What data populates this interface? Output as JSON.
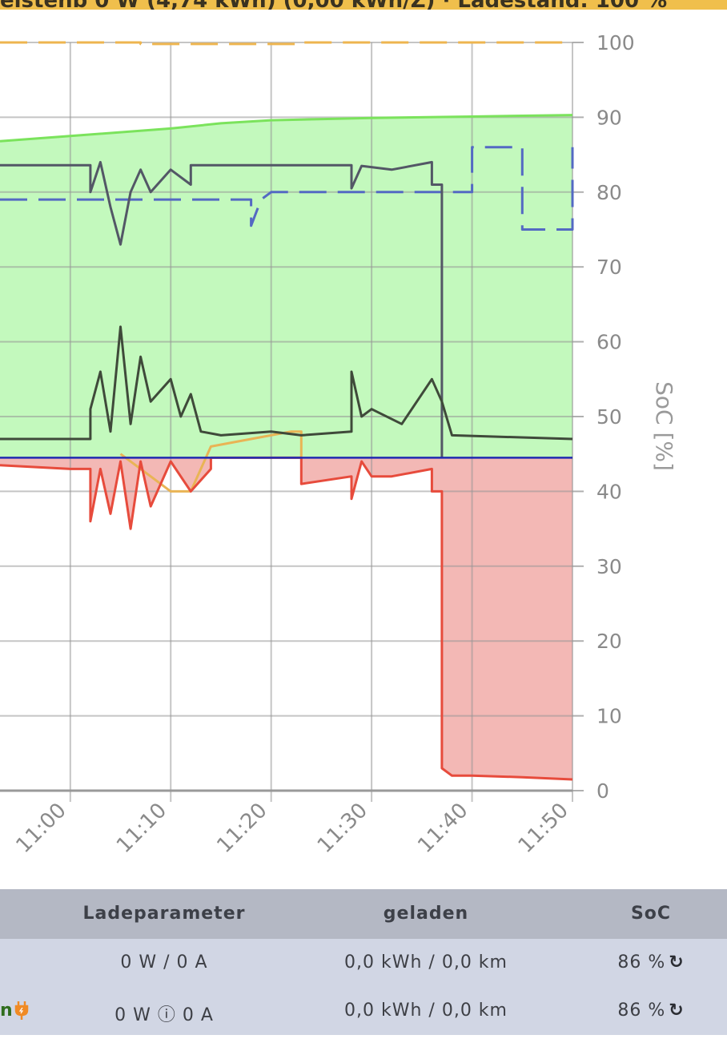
{
  "header": {
    "text": "eistenb 0 W (4,74 kWh) (0,00 kWh/Z) · Ladestand: 100 %",
    "bg_color": "#f0bf4c"
  },
  "chart_data": {
    "type": "line",
    "x_ticks": [
      "11:00",
      "11:10",
      "11:20",
      "11:30",
      "11:40",
      "11:50"
    ],
    "xlim": [
      "10:53",
      "11:50"
    ],
    "y_right_label": "SoC [%]",
    "y_right_ticks": [
      0,
      10,
      20,
      30,
      40,
      50,
      60,
      70,
      80,
      90,
      100
    ],
    "ylim": [
      0,
      100
    ],
    "baseline_level": 44.5,
    "grid": true,
    "series": [
      {
        "key": "soc_home",
        "color": "#7be35c",
        "fill": "#c3f9bd",
        "style": "solid",
        "points": [
          [
            "10:53",
            86.8
          ],
          [
            "11:00",
            87.5
          ],
          [
            "11:10",
            88.5
          ],
          [
            "11:15",
            89.2
          ],
          [
            "11:20",
            89.6
          ],
          [
            "11:30",
            89.9
          ],
          [
            "11:40",
            90.1
          ],
          [
            "11:50",
            90.3
          ]
        ]
      },
      {
        "key": "battery_limit",
        "color": "#eeb54f",
        "style": "dashed",
        "points": [
          [
            "10:53",
            100
          ],
          [
            "11:07",
            100
          ],
          [
            "11:07",
            99.8
          ],
          [
            "11:23",
            99.8
          ],
          [
            "11:23",
            100
          ],
          [
            "11:50",
            100
          ]
        ]
      },
      {
        "key": "vehicle_soc_1",
        "color": "#535766",
        "style": "solid",
        "points": [
          [
            "10:53",
            83.6
          ],
          [
            "11:02",
            83.6
          ],
          [
            "11:02",
            80
          ],
          [
            "11:03",
            84
          ],
          [
            "11:04",
            78
          ],
          [
            "11:05",
            73
          ],
          [
            "11:06",
            80
          ],
          [
            "11:07",
            83
          ],
          [
            "11:08",
            80
          ],
          [
            "11:10",
            83
          ],
          [
            "11:12",
            81
          ],
          [
            "11:12",
            83.6
          ],
          [
            "11:28",
            83.6
          ],
          [
            "11:28",
            80.5
          ],
          [
            "11:29",
            83.5
          ],
          [
            "11:32",
            83
          ],
          [
            "11:36",
            84
          ],
          [
            "11:36",
            81
          ],
          [
            "11:37",
            81
          ],
          [
            "11:37",
            44.5
          ]
        ]
      },
      {
        "key": "vehicle_soc_2",
        "color": "#5469c3",
        "style": "dashed",
        "points": [
          [
            "10:53",
            79
          ],
          [
            "11:18",
            79
          ],
          [
            "11:18",
            75.5
          ],
          [
            "11:19",
            79
          ],
          [
            "11:20",
            80
          ],
          [
            "11:40",
            80
          ],
          [
            "11:40",
            86
          ],
          [
            "11:45",
            86
          ],
          [
            "11:45",
            75
          ],
          [
            "11:47",
            75
          ],
          [
            "11:50",
            75
          ],
          [
            "11:50",
            86
          ]
        ]
      },
      {
        "key": "house_consumption",
        "color": "#3f4a3a",
        "style": "solid",
        "points": [
          [
            "10:53",
            47
          ],
          [
            "11:02",
            47
          ],
          [
            "11:02",
            51
          ],
          [
            "11:03",
            56
          ],
          [
            "11:04",
            48
          ],
          [
            "11:05",
            62
          ],
          [
            "11:06",
            49
          ],
          [
            "11:07",
            58
          ],
          [
            "11:08",
            52
          ],
          [
            "11:10",
            55
          ],
          [
            "11:11",
            50
          ],
          [
            "11:12",
            53
          ],
          [
            "11:13",
            48
          ],
          [
            "11:15",
            47.5
          ],
          [
            "11:20",
            48
          ],
          [
            "11:23",
            47.5
          ],
          [
            "11:28",
            48
          ],
          [
            "11:28",
            56
          ],
          [
            "11:29",
            50
          ],
          [
            "11:30",
            51
          ],
          [
            "11:33",
            49
          ],
          [
            "11:36",
            55
          ],
          [
            "11:37",
            52
          ],
          [
            "11:38",
            47.5
          ],
          [
            "11:50",
            47
          ]
        ]
      },
      {
        "key": "pv_generation",
        "color": "#e9b455",
        "style": "solid",
        "points": [
          [
            "11:05",
            45
          ],
          [
            "11:08",
            42
          ],
          [
            "11:10",
            40
          ],
          [
            "11:12",
            40
          ],
          [
            "11:14",
            46
          ],
          [
            "11:18",
            47
          ],
          [
            "11:22",
            48
          ],
          [
            "11:23",
            48
          ],
          [
            "11:23",
            44.5
          ]
        ]
      },
      {
        "key": "grid_import",
        "color": "#e74b3c",
        "fill": "#f3b8b5",
        "style": "solid",
        "points": [
          [
            "10:53",
            43.5
          ],
          [
            "11:00",
            43
          ],
          [
            "11:02",
            43
          ],
          [
            "11:02",
            36
          ],
          [
            "11:03",
            43
          ],
          [
            "11:04",
            37
          ],
          [
            "11:05",
            44
          ],
          [
            "11:06",
            35
          ],
          [
            "11:07",
            44
          ],
          [
            "11:08",
            38
          ],
          [
            "11:10",
            44
          ],
          [
            "11:12",
            40
          ],
          [
            "11:14",
            43
          ],
          [
            "11:14",
            44.5
          ],
          [
            "11:23",
            44.5
          ],
          [
            "11:23",
            41
          ],
          [
            "11:28",
            42
          ],
          [
            "11:28",
            39
          ],
          [
            "11:29",
            44
          ],
          [
            "11:30",
            42
          ],
          [
            "11:32",
            42
          ],
          [
            "11:36",
            43
          ],
          [
            "11:36",
            40
          ],
          [
            "11:37",
            40
          ],
          [
            "11:37",
            3
          ],
          [
            "11:38",
            2
          ],
          [
            "11:40",
            2
          ],
          [
            "11:45",
            1.8
          ],
          [
            "11:50",
            1.5
          ]
        ]
      }
    ]
  },
  "table": {
    "headers": [
      "Ladeparameter",
      "geladen",
      "SoC"
    ],
    "rows": [
      {
        "name": "",
        "power": "0 W / 0 A",
        "charged": "0,0 kWh / 0,0 km",
        "soc": "86 %",
        "reload": "↻"
      },
      {
        "name": "n",
        "power": "0 W ⓘ 0 A",
        "charged": "0,0 kWh / 0,0 km",
        "soc": "86 %",
        "reload": "↻"
      }
    ]
  }
}
